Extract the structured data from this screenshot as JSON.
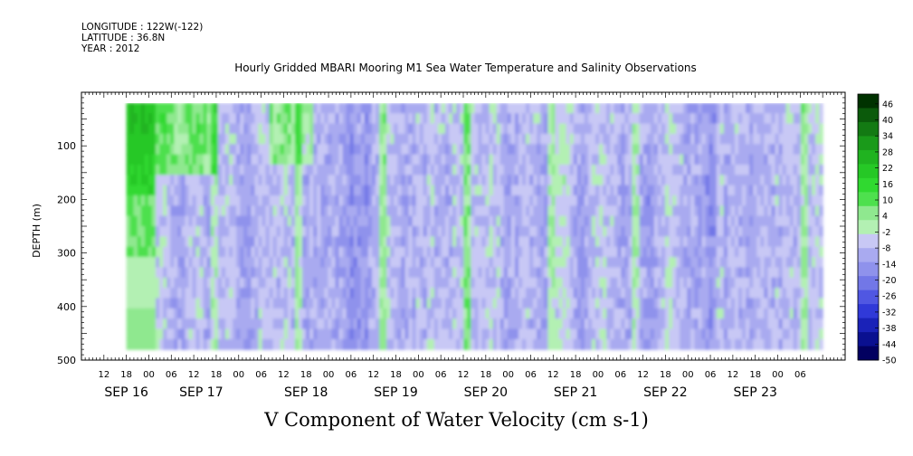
{
  "meta": {
    "longitude": "LONGITUDE : 122W(-122)",
    "latitude": "LATITUDE : 36.8N",
    "year": "YEAR : 2012"
  },
  "chart_data": {
    "type": "heatmap",
    "title": "Hourly Gridded MBARI Mooring M1 Sea Water Temperature and Salinity Observations",
    "xlabel": "V Component of Water Velocity (cm s-1)",
    "ylabel": "DEPTH (m)",
    "x_start_hour": 6,
    "x_hour_ticks": [
      "12",
      "18",
      "00",
      "06",
      "12",
      "18",
      "00",
      "06",
      "12",
      "18",
      "00",
      "06",
      "12",
      "18",
      "00",
      "06",
      "12",
      "18",
      "00",
      "06",
      "12",
      "18",
      "00",
      "06",
      "12",
      "18",
      "00",
      "06",
      "12",
      "18",
      "00",
      "06"
    ],
    "date_labels": [
      {
        "label": "SEP 16",
        "hour": 18
      },
      {
        "label": "SEP 17",
        "hour": 38
      },
      {
        "label": "SEP 18",
        "hour": 66
      },
      {
        "label": "SEP 19",
        "hour": 90
      },
      {
        "label": "SEP 20",
        "hour": 114
      },
      {
        "label": "SEP 21",
        "hour": 138
      },
      {
        "label": "SEP 22",
        "hour": 162
      },
      {
        "label": "SEP 23",
        "hour": 186
      }
    ],
    "ylim": [
      500,
      0
    ],
    "y_ticks": [
      100,
      200,
      300,
      400,
      500
    ],
    "data_depth_range": [
      20,
      480
    ],
    "data_hour_range": [
      18,
      204
    ],
    "colorbar": {
      "levels": [
        "46",
        "40",
        "34",
        "28",
        "22",
        "16",
        "10",
        "4",
        "-2",
        "-8",
        "-14",
        "-20",
        "-26",
        "-32",
        "-38",
        "-44",
        "-50"
      ],
      "min": -50,
      "max": 50,
      "colors": [
        "#003200",
        "#0b5a0b",
        "#137a13",
        "#1a9a1a",
        "#20b320",
        "#26c826",
        "#30d930",
        "#4ee04e",
        "#8fe88f",
        "#b3f0b3",
        "#c8c8f5",
        "#a9aaf0",
        "#8f92ec",
        "#7277e7",
        "#5057e2",
        "#3039d8",
        "#1a22b8",
        "#0a1090",
        "#020060"
      ]
    },
    "grid": false
  }
}
